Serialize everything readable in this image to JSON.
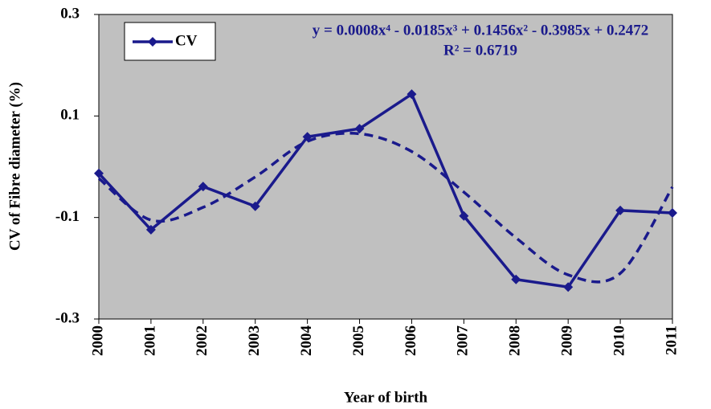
{
  "chart_data": {
    "type": "line",
    "x_label": "Year of birth",
    "y_label": "CV of Fibre diameter (%)",
    "categories": [
      "2000",
      "2001",
      "2002",
      "2003",
      "2004",
      "2005",
      "2006",
      "2007",
      "2008",
      "2009",
      "2010",
      "2011"
    ],
    "series": [
      {
        "name": "CV",
        "color": "#1a1a8c",
        "values": [
          -0.013,
          -0.124,
          -0.039,
          -0.078,
          0.059,
          0.075,
          0.143,
          -0.097,
          -0.222,
          -0.237,
          -0.086,
          -0.091
        ]
      }
    ],
    "trendline": {
      "color": "#1a1a8c",
      "values": [
        -0.023,
        -0.105,
        -0.08,
        -0.02,
        0.05,
        0.065,
        0.03,
        -0.05,
        -0.14,
        -0.213,
        -0.21,
        -0.04
      ],
      "equation": "y = 0.0008x⁴ - 0.0185x³ + 0.1456x² - 0.3985x + 0.2472",
      "r2": "R² = 0.6719"
    },
    "ylim": [
      -0.3,
      0.3
    ],
    "yticks": [
      0.3,
      0.1,
      -0.1,
      -0.3
    ],
    "legend": "top-left",
    "plot_background": "#c0c0c0"
  }
}
